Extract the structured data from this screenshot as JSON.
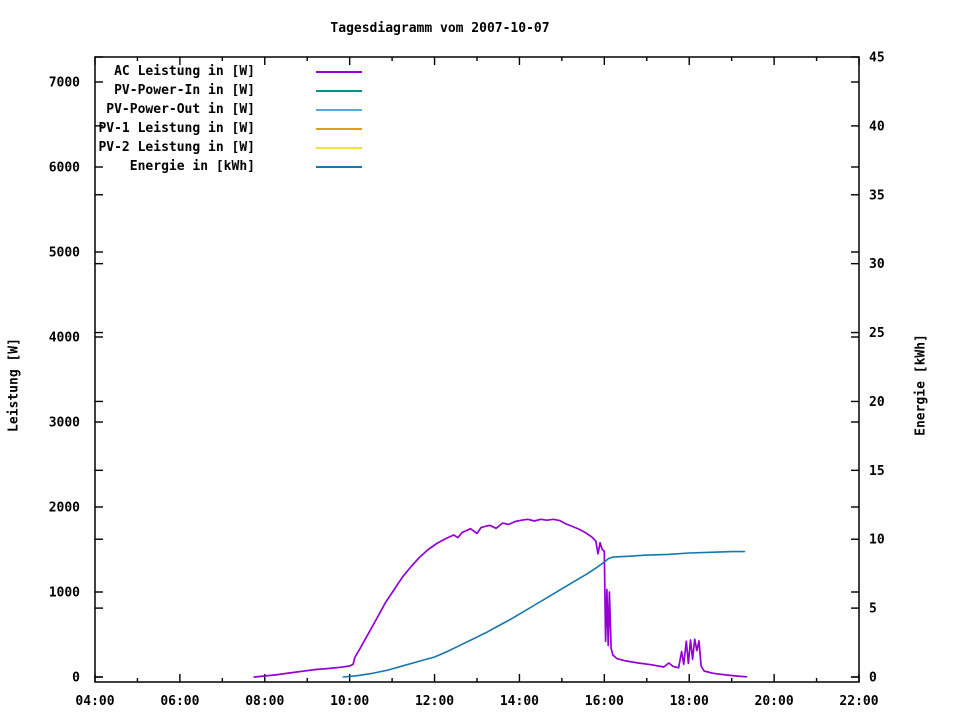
{
  "window": {
    "background": "#ffffff"
  },
  "chart_data": {
    "type": "line",
    "title": "Tagesdiagramm vom 2007-10-07",
    "x_axis": {
      "tick_labels": [
        "04:00",
        "06:00",
        "08:00",
        "10:00",
        "12:00",
        "14:00",
        "16:00",
        "18:00",
        "20:00",
        "22:00"
      ],
      "major_tick_hours": [
        4,
        6,
        8,
        10,
        12,
        14,
        16,
        18,
        20,
        22
      ],
      "minor_tick_hours": [
        5,
        7,
        9,
        11,
        13,
        15,
        17,
        19,
        21
      ],
      "range_hours": [
        4,
        22
      ],
      "grid": false
    },
    "y_left_axis": {
      "label": "Leistung [W]",
      "tick_labels": [
        "0",
        "1000",
        "2000",
        "3000",
        "4000",
        "5000",
        "6000",
        "7000"
      ],
      "tick_values": [
        0,
        1000,
        2000,
        3000,
        4000,
        5000,
        6000,
        7000
      ],
      "range": [
        0,
        7300
      ]
    },
    "y_right_axis": {
      "label": "Energie [kWh]",
      "tick_labels": [
        "0",
        "5",
        "10",
        "15",
        "20",
        "25",
        "30",
        "35",
        "40",
        "45"
      ],
      "tick_values": [
        0,
        5,
        10,
        15,
        20,
        25,
        30,
        35,
        40,
        45
      ],
      "range": [
        0,
        45
      ]
    },
    "legend": {
      "position": "top-left-inside",
      "entries": [
        {
          "label": "AC Leistung in [W]",
          "color": "#9400d3"
        },
        {
          "label": "PV-Power-In in [W]",
          "color": "#009184"
        },
        {
          "label": "PV-Power-Out in [W]",
          "color": "#57ace8"
        },
        {
          "label": "PV-1 Leistung in [W]",
          "color": "#dda018"
        },
        {
          "label": "PV-2 Leistung in [W]",
          "color": "#ece43a"
        },
        {
          "label": "Energie in [kWh]",
          "color": "#1777af"
        }
      ]
    },
    "series": [
      {
        "name": "AC Leistung in [W]",
        "axis": "left",
        "color": "#9400d3",
        "width": 1.7,
        "points_time_hours_vs_watt": [
          [
            7.75,
            0
          ],
          [
            8.0,
            12
          ],
          [
            8.3,
            28
          ],
          [
            8.6,
            48
          ],
          [
            8.9,
            68
          ],
          [
            9.2,
            88
          ],
          [
            9.5,
            100
          ],
          [
            9.8,
            115
          ],
          [
            10.0,
            130
          ],
          [
            10.08,
            150
          ],
          [
            10.12,
            230
          ],
          [
            10.25,
            340
          ],
          [
            10.45,
            520
          ],
          [
            10.65,
            700
          ],
          [
            10.85,
            880
          ],
          [
            11.05,
            1030
          ],
          [
            11.25,
            1180
          ],
          [
            11.45,
            1300
          ],
          [
            11.65,
            1410
          ],
          [
            11.85,
            1500
          ],
          [
            12.05,
            1570
          ],
          [
            12.25,
            1625
          ],
          [
            12.45,
            1670
          ],
          [
            12.55,
            1640
          ],
          [
            12.65,
            1700
          ],
          [
            12.85,
            1745
          ],
          [
            13.0,
            1690
          ],
          [
            13.1,
            1760
          ],
          [
            13.3,
            1785
          ],
          [
            13.45,
            1750
          ],
          [
            13.6,
            1810
          ],
          [
            13.75,
            1795
          ],
          [
            13.9,
            1830
          ],
          [
            14.05,
            1845
          ],
          [
            14.2,
            1855
          ],
          [
            14.35,
            1835
          ],
          [
            14.5,
            1855
          ],
          [
            14.65,
            1845
          ],
          [
            14.8,
            1855
          ],
          [
            14.95,
            1840
          ],
          [
            15.1,
            1800
          ],
          [
            15.25,
            1770
          ],
          [
            15.4,
            1740
          ],
          [
            15.55,
            1700
          ],
          [
            15.7,
            1650
          ],
          [
            15.8,
            1600
          ],
          [
            15.85,
            1450
          ],
          [
            15.9,
            1580
          ],
          [
            15.95,
            1500
          ],
          [
            16.0,
            1480
          ],
          [
            16.03,
            420
          ],
          [
            16.06,
            1030
          ],
          [
            16.09,
            370
          ],
          [
            16.12,
            1000
          ],
          [
            16.16,
            340
          ],
          [
            16.2,
            260
          ],
          [
            16.3,
            215
          ],
          [
            16.5,
            190
          ],
          [
            16.8,
            165
          ],
          [
            17.1,
            145
          ],
          [
            17.4,
            118
          ],
          [
            17.52,
            165
          ],
          [
            17.62,
            125
          ],
          [
            17.75,
            108
          ],
          [
            17.82,
            300
          ],
          [
            17.87,
            150
          ],
          [
            17.93,
            420
          ],
          [
            17.98,
            160
          ],
          [
            18.03,
            435
          ],
          [
            18.08,
            210
          ],
          [
            18.13,
            445
          ],
          [
            18.18,
            310
          ],
          [
            18.23,
            425
          ],
          [
            18.28,
            130
          ],
          [
            18.35,
            70
          ],
          [
            18.55,
            45
          ],
          [
            18.85,
            25
          ],
          [
            19.15,
            10
          ],
          [
            19.35,
            2
          ]
        ]
      },
      {
        "name": "PV-Power-In in [W]",
        "axis": "left",
        "color": "#009184",
        "width": 1.5,
        "points_time_hours_vs_watt": []
      },
      {
        "name": "PV-Power-Out in [W]",
        "axis": "left",
        "color": "#57ace8",
        "width": 1.5,
        "points_time_hours_vs_watt": []
      },
      {
        "name": "PV-1 Leistung in [W]",
        "axis": "left",
        "color": "#dda018",
        "width": 1.5,
        "points_time_hours_vs_watt": []
      },
      {
        "name": "PV-2 Leistung in [W]",
        "axis": "left",
        "color": "#ece43a",
        "width": 1.5,
        "points_time_hours_vs_watt": []
      },
      {
        "name": "Energie in [kWh]",
        "axis": "right",
        "color": "#1777af",
        "width": 1.6,
        "points_time_hours_vs_kwh": [
          [
            9.85,
            0
          ],
          [
            10.2,
            0.1
          ],
          [
            10.5,
            0.25
          ],
          [
            10.9,
            0.5
          ],
          [
            11.3,
            0.85
          ],
          [
            11.7,
            1.2
          ],
          [
            12.0,
            1.45
          ],
          [
            12.3,
            1.85
          ],
          [
            12.6,
            2.3
          ],
          [
            12.9,
            2.75
          ],
          [
            13.2,
            3.2
          ],
          [
            13.5,
            3.7
          ],
          [
            13.8,
            4.2
          ],
          [
            14.1,
            4.75
          ],
          [
            14.4,
            5.3
          ],
          [
            14.7,
            5.85
          ],
          [
            15.0,
            6.4
          ],
          [
            15.3,
            6.95
          ],
          [
            15.6,
            7.5
          ],
          [
            15.8,
            7.9
          ],
          [
            16.0,
            8.35
          ],
          [
            16.1,
            8.6
          ],
          [
            16.2,
            8.7
          ],
          [
            16.5,
            8.75
          ],
          [
            17.0,
            8.85
          ],
          [
            17.5,
            8.9
          ],
          [
            18.0,
            9.0
          ],
          [
            18.5,
            9.05
          ],
          [
            19.0,
            9.1
          ],
          [
            19.3,
            9.1
          ]
        ]
      }
    ],
    "annotations": {
      "peak_ac_watt": 1855,
      "final_energy_kwh": 9.1
    },
    "colors": {
      "axis": "#000000",
      "background": "#ffffff",
      "text": "#000000"
    }
  }
}
